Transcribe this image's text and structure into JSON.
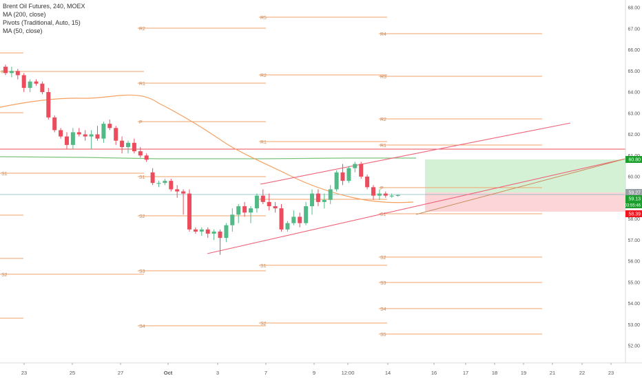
{
  "legend": {
    "title": "Brent Oil Futures, 240, MOEX",
    "indicators": [
      "MA (200, close)",
      "Pivots (Traditional, Auto, 15)",
      "MA (50, close)"
    ]
  },
  "colors": {
    "up": "#53b987",
    "down": "#eb4d5c",
    "pivot": "#f2a36a",
    "ma50": "#f5a05f",
    "ma200": "#7bc27d",
    "channel": "#f06078",
    "target_zone": "#cdeecf",
    "stop_zone": "#fbd0d3",
    "tag_green": "#1b9e2d",
    "tag_red": "#f0141e",
    "tag_gray": "#9aa1a6"
  },
  "price_axis": {
    "ticks": [
      "68.00",
      "67.00",
      "66.00",
      "65.00",
      "64.00",
      "63.00",
      "62.00",
      "61.00",
      "60.00",
      "59.00",
      "58.00",
      "57.00",
      "56.00",
      "55.00",
      "54.00",
      "53.00",
      "52.00"
    ],
    "tags": [
      {
        "value": "60.80",
        "kind": "green"
      },
      {
        "value": "59.27",
        "kind": "gray"
      },
      {
        "value": "59.13",
        "kind": "green"
      },
      {
        "value": "03:55:46",
        "kind": "green"
      },
      {
        "value": "58.39",
        "kind": "red"
      }
    ]
  },
  "time_axis": {
    "ticks": [
      "23",
      "25",
      "27",
      "Oct",
      "3",
      "7",
      "9",
      "12:00",
      "14",
      "16",
      "17",
      "18",
      "19",
      "21",
      "22",
      "23"
    ]
  },
  "pivot_labels": [
    "R5",
    "R4",
    "R3",
    "R2",
    "R1",
    "P",
    "S1",
    "S2",
    "S3",
    "S4",
    "S5"
  ],
  "candles": [
    [
      65.2,
      65.3,
      64.8,
      64.9
    ],
    [
      64.9,
      65.2,
      64.7,
      65.0
    ],
    [
      65.0,
      65.1,
      64.6,
      64.8
    ],
    [
      64.8,
      64.9,
      64.0,
      64.2
    ],
    [
      64.2,
      64.6,
      64.0,
      64.5
    ],
    [
      64.5,
      64.6,
      64.3,
      64.4
    ],
    [
      64.4,
      64.5,
      63.9,
      64.0
    ],
    [
      64.0,
      64.2,
      62.7,
      62.8
    ],
    [
      62.8,
      62.9,
      62.1,
      62.2
    ],
    [
      62.2,
      62.3,
      61.8,
      61.9
    ],
    [
      61.9,
      62.1,
      61.3,
      61.5
    ],
    [
      61.5,
      62.3,
      61.3,
      62.1
    ],
    [
      62.1,
      62.3,
      61.9,
      62.0
    ],
    [
      62.0,
      62.2,
      61.7,
      61.9
    ],
    [
      61.9,
      62.2,
      61.3,
      62.0
    ],
    [
      62.0,
      62.4,
      61.7,
      61.8
    ],
    [
      61.8,
      62.6,
      61.6,
      62.5
    ],
    [
      62.5,
      62.7,
      62.2,
      62.3
    ],
    [
      62.3,
      62.4,
      61.5,
      61.7
    ],
    [
      61.7,
      61.9,
      61.1,
      61.4
    ],
    [
      61.4,
      61.7,
      61.1,
      61.6
    ],
    [
      61.6,
      61.8,
      61.1,
      61.2
    ],
    [
      61.2,
      61.4,
      60.9,
      61.0
    ],
    [
      61.0,
      61.1,
      60.7,
      60.8
    ],
    [
      60.2,
      60.4,
      59.6,
      59.7
    ],
    [
      59.7,
      59.8,
      59.5,
      59.7
    ],
    [
      59.7,
      59.9,
      59.6,
      59.8
    ],
    [
      59.8,
      59.9,
      59.3,
      59.4
    ],
    [
      59.4,
      59.6,
      59.0,
      59.3
    ],
    [
      59.3,
      59.4,
      58.2,
      59.2
    ],
    [
      59.2,
      59.4,
      57.4,
      57.5
    ],
    [
      57.5,
      57.6,
      57.3,
      57.4
    ],
    [
      57.4,
      57.6,
      57.2,
      57.5
    ],
    [
      57.5,
      57.6,
      57.1,
      57.3
    ],
    [
      57.3,
      57.5,
      57.0,
      57.4
    ],
    [
      57.4,
      57.5,
      56.3,
      57.1
    ],
    [
      57.1,
      57.8,
      56.9,
      57.7
    ],
    [
      57.7,
      58.5,
      57.4,
      58.2
    ],
    [
      58.2,
      58.7,
      57.8,
      58.6
    ],
    [
      58.6,
      58.8,
      58.1,
      58.3
    ],
    [
      58.3,
      58.6,
      57.8,
      58.5
    ],
    [
      58.5,
      59.2,
      58.3,
      59.1
    ],
    [
      59.1,
      59.4,
      58.7,
      58.8
    ],
    [
      58.8,
      59.2,
      58.4,
      58.6
    ],
    [
      58.6,
      58.8,
      58.3,
      58.5
    ],
    [
      58.5,
      58.7,
      57.4,
      57.5
    ],
    [
      57.5,
      57.9,
      57.4,
      57.8
    ],
    [
      57.8,
      58.4,
      57.7,
      58.1
    ],
    [
      58.1,
      58.3,
      57.6,
      57.8
    ],
    [
      57.8,
      58.8,
      57.7,
      58.6
    ],
    [
      58.6,
      59.4,
      58.2,
      59.2
    ],
    [
      59.2,
      59.4,
      58.6,
      58.8
    ],
    [
      58.8,
      59.2,
      58.5,
      58.9
    ],
    [
      58.9,
      59.6,
      58.7,
      59.4
    ],
    [
      59.4,
      60.3,
      59.3,
      60.2
    ],
    [
      60.2,
      60.6,
      59.6,
      59.8
    ],
    [
      59.8,
      60.5,
      59.7,
      60.4
    ],
    [
      60.4,
      60.7,
      60.2,
      60.6
    ],
    [
      60.6,
      60.7,
      59.9,
      60.0
    ],
    [
      60.0,
      60.1,
      59.4,
      59.5
    ],
    [
      59.5,
      59.6,
      58.9,
      59.1
    ],
    [
      59.1,
      59.4,
      58.9,
      59.2
    ],
    [
      59.2,
      59.3,
      59.0,
      59.1
    ],
    [
      59.1,
      59.2,
      59.0,
      59.1
    ],
    [
      59.1,
      59.15,
      59.05,
      59.13
    ]
  ]
}
